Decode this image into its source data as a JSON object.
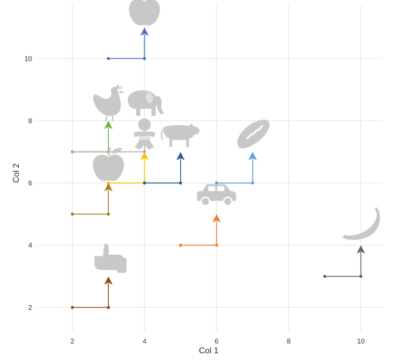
{
  "chart_data": {
    "type": "scatter",
    "title": "",
    "xlabel": "Col 1",
    "ylabel": "Col 2",
    "xlim": [
      1,
      10.6
    ],
    "ylim": [
      1.2,
      11.7
    ],
    "xticks": [
      2,
      4,
      6,
      8,
      10
    ],
    "yticks": [
      2,
      4,
      6,
      8,
      10
    ],
    "grid": true,
    "legend": "none",
    "icon_color": "#c8c8c8",
    "grid_color": "#e5e5e5",
    "arrows": [
      {
        "name": "apple-top",
        "color": "#4472c4",
        "x1": 3,
        "y1": 10,
        "x2": 4,
        "y2": 10,
        "y3": 11,
        "icon": "apple"
      },
      {
        "name": "chicken",
        "color": "#70ad47",
        "x1": 2,
        "y1": 7,
        "x2": 3,
        "y2": 7,
        "y3": 8,
        "icon": "chicken"
      },
      {
        "name": "elephant",
        "color": "#a5a5a5",
        "x1": 2,
        "y1": 7,
        "x2": 4,
        "y2": 7,
        "y3": 8,
        "icon": "elephant"
      },
      {
        "name": "baby",
        "color": "#ffc000",
        "x1": 3,
        "y1": 6,
        "x2": 4,
        "y2": 6,
        "y3": 7,
        "icon": "baby"
      },
      {
        "name": "cow",
        "color": "#255e91",
        "x1": 4,
        "y1": 6,
        "x2": 5,
        "y2": 6,
        "y3": 7,
        "icon": "cow"
      },
      {
        "name": "bread",
        "color": "#5b9bd5",
        "x1": 6,
        "y1": 6,
        "x2": 7,
        "y2": 6,
        "y3": 7,
        "icon": "bread"
      },
      {
        "name": "apple-mid",
        "color": "#9e7e1a",
        "x1": 2,
        "y1": 5,
        "x2": 3,
        "y2": 5,
        "y3": 6,
        "icon": "apple"
      },
      {
        "name": "car",
        "color": "#ed7d31",
        "x1": 5,
        "y1": 4,
        "x2": 6,
        "y2": 4,
        "y3": 5,
        "icon": "car"
      },
      {
        "name": "thumbs-up",
        "color": "#9e480e",
        "x1": 2,
        "y1": 2,
        "x2": 3,
        "y2": 2,
        "y3": 3,
        "icon": "thumbs-up"
      },
      {
        "name": "banana",
        "color": "#636363",
        "x1": 9,
        "y1": 3,
        "x2": 10,
        "y2": 3,
        "y3": 4,
        "icon": "banana"
      }
    ]
  }
}
